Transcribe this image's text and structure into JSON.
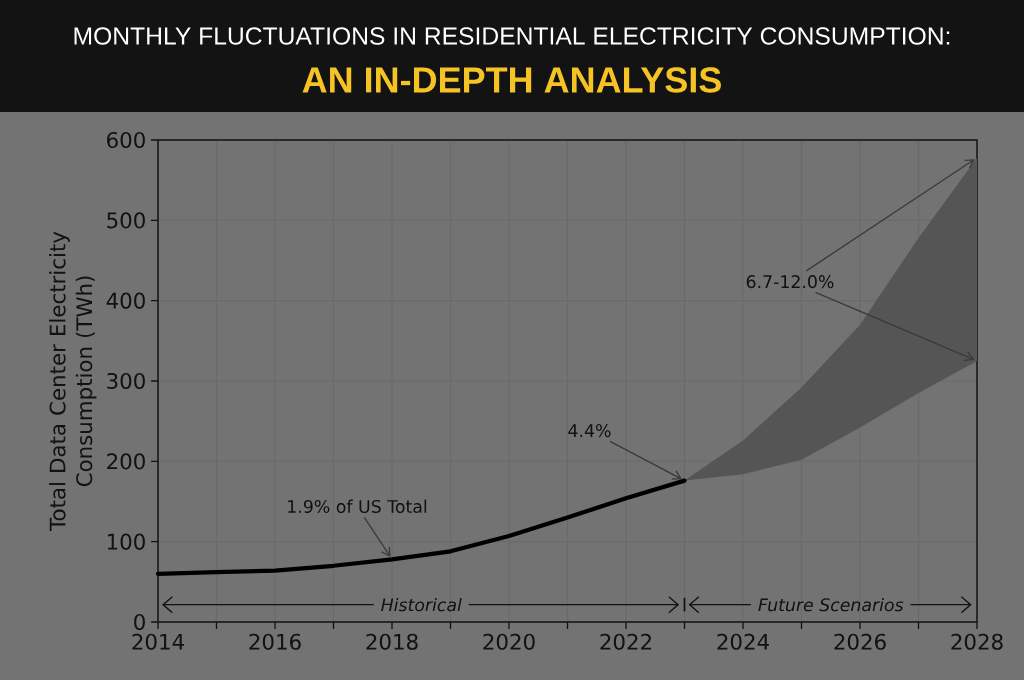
{
  "chart_data": {
    "type": "line",
    "title": "MONTHLY FLUCTUATIONS IN RESIDENTIAL ELECTRICITY CONSUMPTION:",
    "subtitle": "AN IN-DEPTH ANALYSIS",
    "ylabel": "Total Data Center Electricity Consumption (TWh)",
    "x": [
      2014,
      2015,
      2016,
      2017,
      2018,
      2019,
      2020,
      2021,
      2022,
      2023,
      2024,
      2025,
      2026,
      2027,
      2028
    ],
    "series": [
      {
        "color": "#000000",
        "values": [
          60,
          62,
          64,
          70,
          78,
          88,
          107,
          130,
          154,
          176,
          null,
          null,
          null,
          null,
          null
        ],
        "lower": [
          null,
          null,
          null,
          null,
          null,
          null,
          null,
          null,
          null,
          176,
          184,
          202,
          242,
          285,
          325
        ],
        "upper": [
          null,
          null,
          null,
          null,
          null,
          null,
          null,
          null,
          null,
          176,
          226,
          292,
          370,
          478,
          578
        ]
      }
    ],
    "xlim": [
      2014,
      2028
    ],
    "ylim": [
      0,
      600
    ],
    "xticks": [
      2014,
      {
        "value": 2015,
        "label": null
      },
      2016,
      {
        "value": 2017,
        "label": null
      },
      2018,
      {
        "value": 2019,
        "label": null
      },
      2020,
      {
        "value": 2021,
        "label": null
      },
      2022,
      {
        "value": 2023,
        "label": null
      },
      2024,
      {
        "value": 2025,
        "label": null
      },
      2026,
      {
        "value": 2027,
        "label": null
      },
      2028
    ],
    "yticks": [
      0,
      100,
      200,
      300,
      400,
      500,
      600
    ],
    "grid": true,
    "annotations": [
      {
        "text": "1.9% of US Total",
        "x": 2018,
        "y": 78
      },
      {
        "text": "4.4%",
        "x": 2023,
        "y": 176
      },
      {
        "text": "6.7-12.0%",
        "x": 2028,
        "y": 578
      },
      "Historical",
      "Future Scenarios"
    ]
  }
}
